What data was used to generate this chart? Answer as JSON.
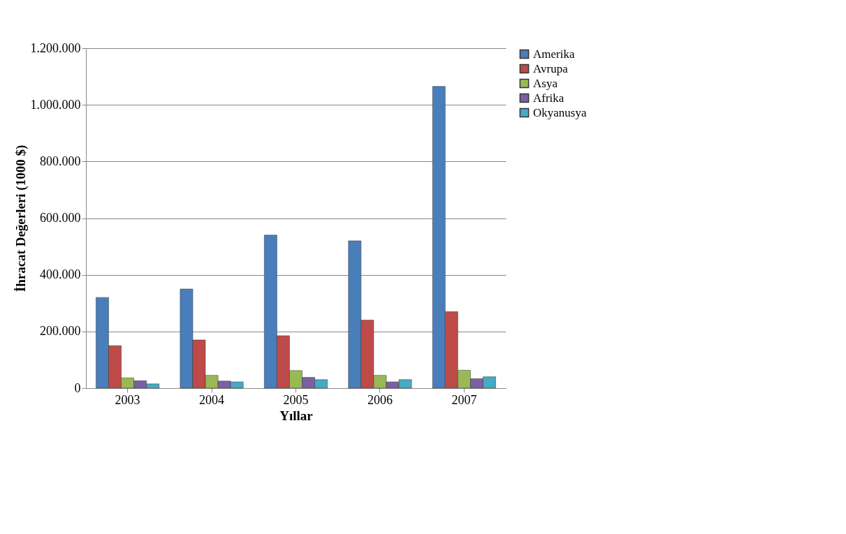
{
  "chart_data": {
    "type": "bar",
    "xlabel": "Yıllar",
    "ylabel": "İhracat Değerleri (1000 $)",
    "categories": [
      "2003",
      "2004",
      "2005",
      "2006",
      "2007"
    ],
    "series": [
      {
        "name": "Amerika",
        "color": "#4a7ebb",
        "values": [
          320000,
          350000,
          540000,
          520000,
          1065000
        ]
      },
      {
        "name": "Avrupa",
        "color": "#be4b48",
        "values": [
          150000,
          170000,
          185000,
          240000,
          270000
        ]
      },
      {
        "name": "Asya",
        "color": "#98b954",
        "values": [
          36000,
          45000,
          62000,
          45000,
          63000
        ]
      },
      {
        "name": "Afrika",
        "color": "#7d60a0",
        "values": [
          26000,
          25000,
          38000,
          22000,
          33000
        ]
      },
      {
        "name": "Okyanusya",
        "color": "#46aac5",
        "values": [
          15000,
          22000,
          30000,
          30000,
          40000
        ]
      }
    ],
    "ylim": [
      0,
      1200000
    ],
    "yticks": [
      {
        "value": 0,
        "label": "0"
      },
      {
        "value": 200000,
        "label": "200.000"
      },
      {
        "value": 400000,
        "label": "400.000"
      },
      {
        "value": 600000,
        "label": "600.000"
      },
      {
        "value": 800000,
        "label": "800.000"
      },
      {
        "value": 1000000,
        "label": "1.000.000"
      },
      {
        "value": 1200000,
        "label": "1.200.000"
      }
    ],
    "grid": "y",
    "legend": "right"
  }
}
